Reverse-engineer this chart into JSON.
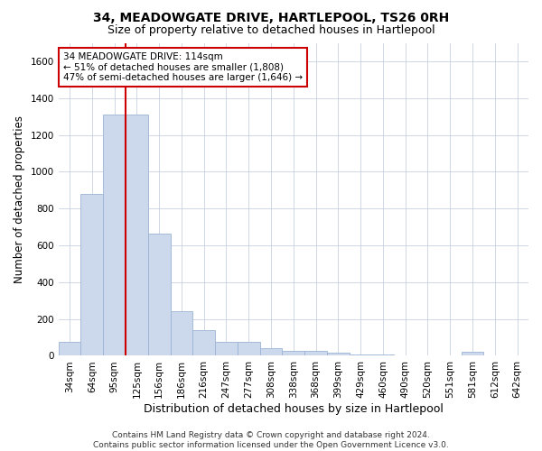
{
  "title": "34, MEADOWGATE DRIVE, HARTLEPOOL, TS26 0RH",
  "subtitle": "Size of property relative to detached houses in Hartlepool",
  "xlabel": "Distribution of detached houses by size in Hartlepool",
  "ylabel": "Number of detached properties",
  "bar_color": "#ccd9ed",
  "bar_edge_color": "#9ab3d4",
  "vline_color": "#cc0000",
  "annotation_text": "34 MEADOWGATE DRIVE: 114sqm\n← 51% of detached houses are smaller (1,808)\n47% of semi-detached houses are larger (1,646) →",
  "annotation_box_color": "#ffffff",
  "annotation_box_edge": "#cc0000",
  "categories": [
    "34sqm",
    "64sqm",
    "95sqm",
    "125sqm",
    "156sqm",
    "186sqm",
    "216sqm",
    "247sqm",
    "277sqm",
    "308sqm",
    "338sqm",
    "368sqm",
    "399sqm",
    "429sqm",
    "460sqm",
    "490sqm",
    "520sqm",
    "551sqm",
    "581sqm",
    "612sqm",
    "642sqm"
  ],
  "values": [
    75,
    880,
    1310,
    1310,
    665,
    240,
    140,
    75,
    75,
    40,
    25,
    25,
    15,
    5,
    5,
    0,
    0,
    0,
    20,
    0,
    0
  ],
  "ylim": [
    0,
    1700
  ],
  "yticks": [
    0,
    200,
    400,
    600,
    800,
    1000,
    1200,
    1400,
    1600
  ],
  "background_color": "#ffffff",
  "grid_color": "#c8d0e0",
  "footer_line1": "Contains HM Land Registry data © Crown copyright and database right 2024.",
  "footer_line2": "Contains public sector information licensed under the Open Government Licence v3.0.",
  "title_fontsize": 10,
  "subtitle_fontsize": 9,
  "axis_label_fontsize": 8.5,
  "tick_fontsize": 7.5,
  "footer_fontsize": 6.5,
  "annotation_fontsize": 7.5
}
